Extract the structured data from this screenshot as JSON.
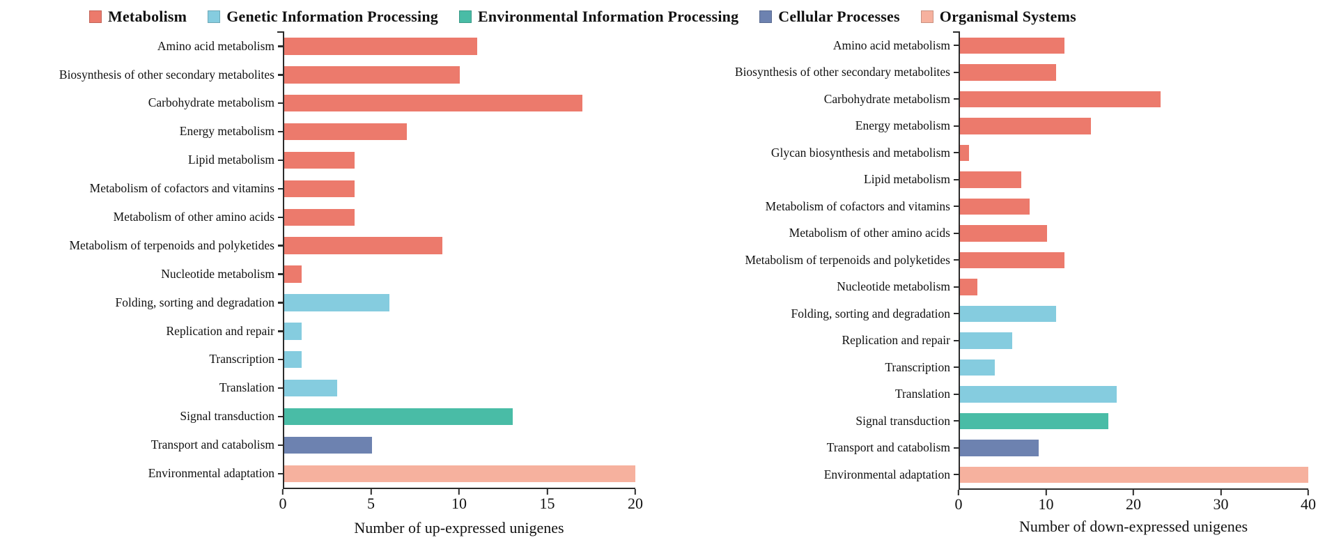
{
  "legend": {
    "items": [
      {
        "label": "Metabolism",
        "color": "#EC7A6C"
      },
      {
        "label": "Genetic Information Processing",
        "color": "#85CCDF"
      },
      {
        "label": "Environmental Information Processing",
        "color": "#49BCA6"
      },
      {
        "label": "Cellular Processes",
        "color": "#6D82B0"
      },
      {
        "label": "Organismal Systems",
        "color": "#F6B19E"
      }
    ]
  },
  "chart_data": [
    {
      "id": "up-expressed-chart",
      "type": "bar",
      "orientation": "horizontal",
      "title": "",
      "xlabel": "Number of up-expressed unigenes",
      "ylabel": "",
      "xlim": [
        0,
        20
      ],
      "xticks": [
        0,
        5,
        10,
        15,
        20
      ],
      "grid": false,
      "legend_position": "top",
      "categories": [
        "Amino acid metabolism",
        "Biosynthesis of other secondary metabolites",
        "Carbohydrate metabolism",
        "Energy metabolism",
        "Lipid metabolism",
        "Metabolism of cofactors and vitamins",
        "Metabolism of other amino acids",
        "Metabolism of terpenoids and polyketides",
        "Nucleotide metabolism",
        "Folding, sorting and degradation",
        "Replication and repair",
        "Transcription",
        "Translation",
        "Signal transduction",
        "Transport and catabolism",
        "Environmental adaptation"
      ],
      "values": [
        11,
        10,
        17,
        7,
        4,
        4,
        4,
        9,
        1,
        6,
        1,
        1,
        3,
        13,
        5,
        20
      ],
      "category_groups": [
        "Metabolism",
        "Metabolism",
        "Metabolism",
        "Metabolism",
        "Metabolism",
        "Metabolism",
        "Metabolism",
        "Metabolism",
        "Metabolism",
        "Genetic Information Processing",
        "Genetic Information Processing",
        "Genetic Information Processing",
        "Genetic Information Processing",
        "Environmental Information Processing",
        "Cellular Processes",
        "Organismal Systems"
      ]
    },
    {
      "id": "down-expressed-chart",
      "type": "bar",
      "orientation": "horizontal",
      "title": "",
      "xlabel": "Number of down-expressed unigenes",
      "ylabel": "",
      "xlim": [
        0,
        40
      ],
      "xticks": [
        0,
        10,
        20,
        30,
        40
      ],
      "grid": false,
      "legend_position": "top",
      "categories": [
        "Amino acid metabolism",
        "Biosynthesis of other secondary metabolites",
        "Carbohydrate metabolism",
        "Energy metabolism",
        "Glycan biosynthesis and metabolism",
        "Lipid metabolism",
        "Metabolism of cofactors and vitamins",
        "Metabolism of other amino acids",
        "Metabolism of terpenoids and polyketides",
        "Nucleotide metabolism",
        "Folding, sorting and degradation",
        "Replication and repair",
        "Transcription",
        "Translation",
        "Signal transduction",
        "Transport and catabolism",
        "Environmental adaptation"
      ],
      "values": [
        12,
        11,
        23,
        15,
        1,
        7,
        8,
        10,
        12,
        2,
        11,
        6,
        4,
        18,
        17,
        9,
        40
      ],
      "category_groups": [
        "Metabolism",
        "Metabolism",
        "Metabolism",
        "Metabolism",
        "Metabolism",
        "Metabolism",
        "Metabolism",
        "Metabolism",
        "Metabolism",
        "Metabolism",
        "Genetic Information Processing",
        "Genetic Information Processing",
        "Genetic Information Processing",
        "Genetic Information Processing",
        "Environmental Information Processing",
        "Cellular Processes",
        "Organismal Systems"
      ]
    }
  ]
}
